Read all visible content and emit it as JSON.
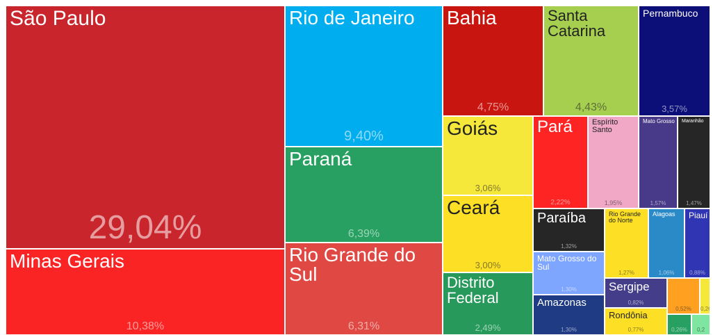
{
  "chart_data": {
    "type": "treemap",
    "categories": [
      "São Paulo",
      "Minas Gerais",
      "Rio de Janeiro",
      "Paraná",
      "Rio Grande do Sul",
      "Bahia",
      "Santa Catarina",
      "Pernambuco",
      "Goiás",
      "Ceará",
      "Distrito Federal",
      "Pará",
      "Espírito Santo",
      "Mato Grosso",
      "Maranhão",
      "Paraíba",
      "Mato Grosso do Sul",
      "Amazonas",
      "Rio Grande do Norte",
      "Alagoas",
      "Piauí",
      "Sergipe",
      "Rondônia",
      null,
      null,
      null,
      null
    ],
    "values": [
      29.04,
      10.38,
      9.4,
      6.39,
      6.31,
      4.75,
      4.43,
      3.57,
      3.06,
      3.0,
      2.49,
      2.22,
      1.95,
      1.57,
      1.47,
      1.32,
      1.3,
      1.3,
      1.27,
      1.06,
      0.88,
      0.82,
      0.77,
      0.52,
      0.26,
      0.26,
      0.2
    ],
    "value_labels": [
      "29,04%",
      "10,38%",
      "9,40%",
      "6,39%",
      "6,31%",
      "4,75%",
      "4,43%",
      "3,57%",
      "3,06%",
      "3,00%",
      "2,49%",
      "2,22%",
      "1,95%",
      "1,57%",
      "1,47%",
      "1,32%",
      "1,30%",
      "1,30%",
      "1,27%",
      "1,06%",
      "0,88%",
      "0,82%",
      "0,77%",
      "0,52%",
      "0,26%",
      "0,26%",
      "0,2"
    ],
    "colors": [
      "#c9252c",
      "#fb2424",
      "#00aeef",
      "#27a062",
      "#e04843",
      "#c8150f",
      "#a6cf50",
      "#0d0f78",
      "#f5e83a",
      "#fde025",
      "#27995a",
      "#ff2424",
      "#f0a8c6",
      "#483a88",
      "#262626",
      "#262626",
      "#7fa6ff",
      "#1f3b84",
      "#fde025",
      "#2a8ac8",
      "#2f35b3",
      "#433d8a",
      "#fde025",
      "#ffa020",
      "#f5e83a",
      "#27a062",
      "#7ee6a0"
    ]
  }
}
